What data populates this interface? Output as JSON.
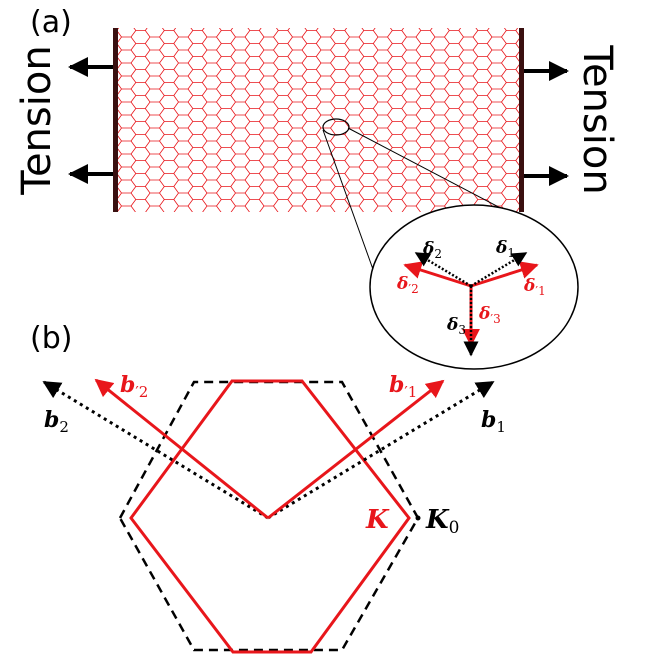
{
  "panels": {
    "a_label": "(a)",
    "b_label": "(b)"
  },
  "tension": {
    "left": "Tension",
    "right": "Tension"
  },
  "inset": {
    "delta1": "δ",
    "delta1_sub": "1",
    "delta2": "δ",
    "delta2_sub": "2",
    "delta3": "δ",
    "delta3_sub": "3",
    "delta1p": "δ",
    "delta1p_sub": "′1",
    "delta2p": "δ",
    "delta2p_sub": "′2",
    "delta3p": "δ",
    "delta3p_sub": "′3"
  },
  "brillouin": {
    "b1": "b",
    "b1_sub": "1",
    "b2": "b",
    "b2_sub": "2",
    "b1p": "b",
    "b1p_sub": "′1",
    "b2p": "b",
    "b2p_sub": "′2",
    "K": "K",
    "K0": "K",
    "K0_sub": "0"
  },
  "colors": {
    "strained": "#e8161b",
    "unstrained": "#000000",
    "lattice": "#e8161b",
    "clamp": "#3a1010"
  },
  "icons": [
    "arrow-left-icon",
    "arrow-right-icon"
  ]
}
